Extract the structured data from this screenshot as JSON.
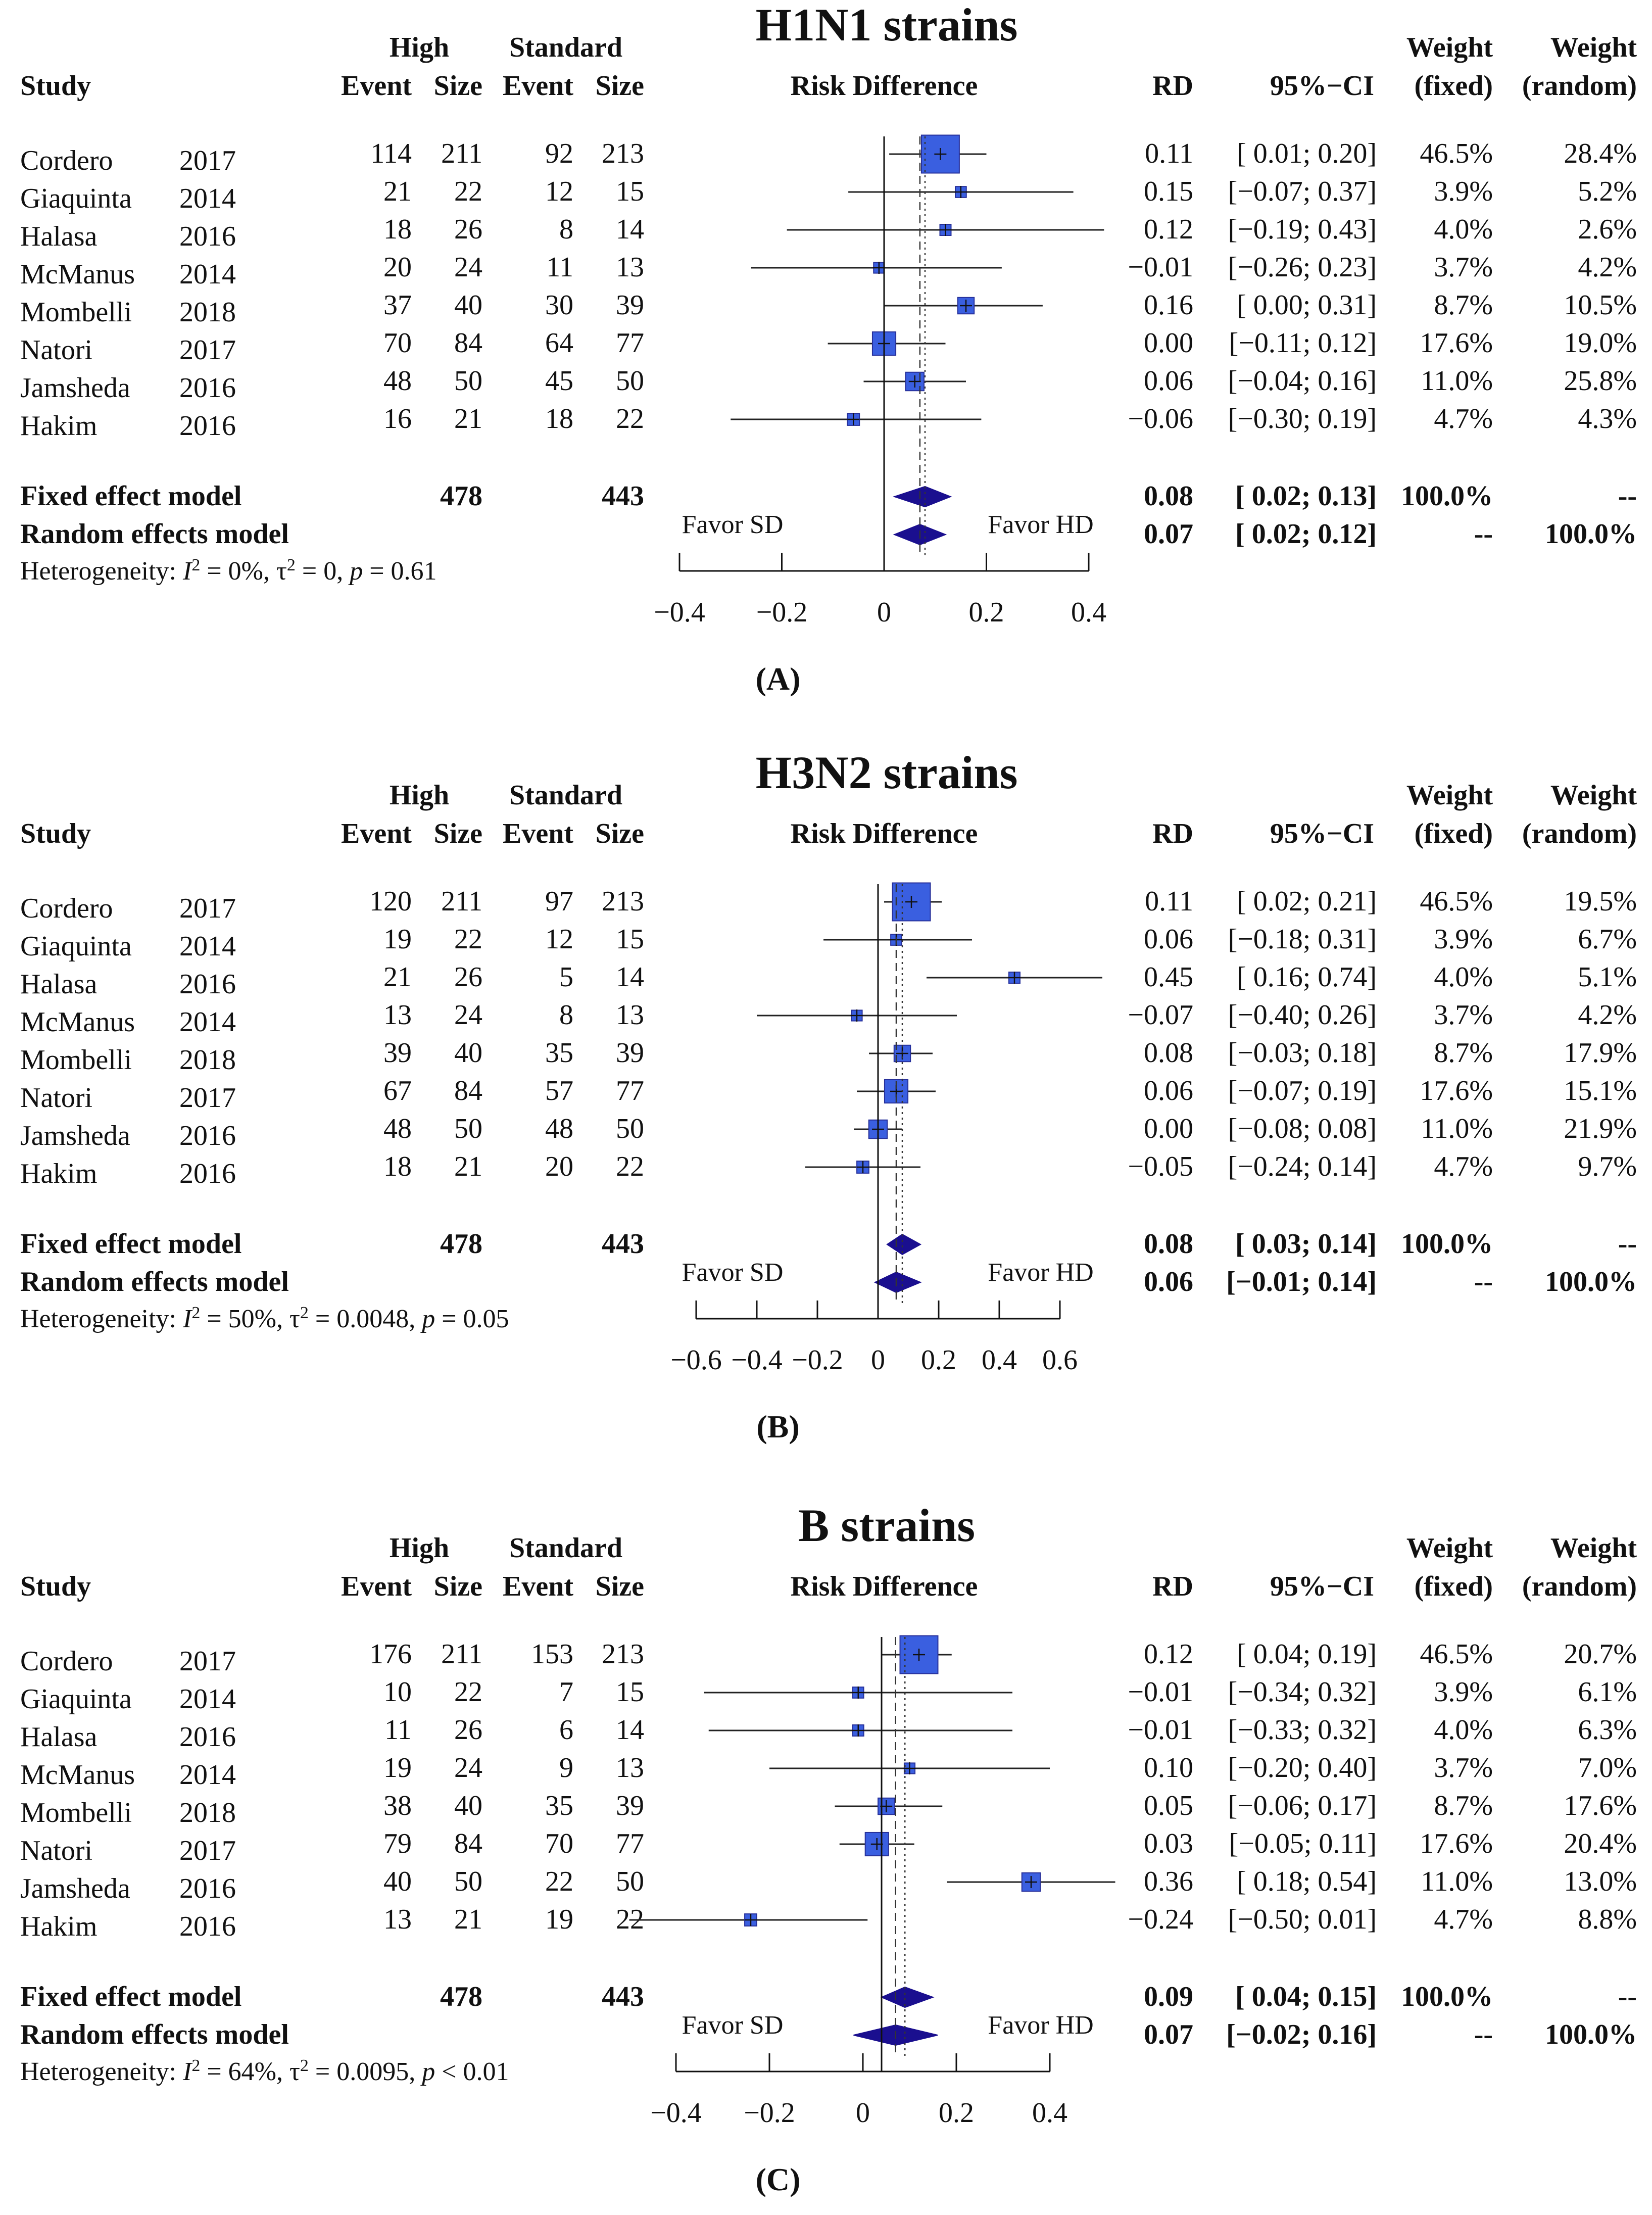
{
  "chart_data": [
    {
      "type": "forest",
      "title": "H1N1 strains",
      "panel_label": "(A)",
      "columns": {
        "study": "Study",
        "high": "High",
        "standard": "Standard",
        "event": "Event",
        "size": "Size",
        "plot": "Risk Difference",
        "rd": "RD",
        "ci": "95%−CI",
        "weight": "Weight",
        "fixed": "(fixed)",
        "random": "(random)"
      },
      "studies": [
        {
          "name": "Cordero",
          "year": "2017",
          "high_event": "114",
          "high_size": "211",
          "std_event": "92",
          "std_size": "213",
          "rd": 0.11,
          "lo": 0.01,
          "hi": 0.2,
          "rd_text": "0.11",
          "ci_text": "[ 0.01; 0.20]",
          "w_fixed": "46.5%",
          "w_random": "28.4%",
          "wf": 46.5
        },
        {
          "name": "Giaquinta",
          "year": "2014",
          "high_event": "21",
          "high_size": "22",
          "std_event": "12",
          "std_size": "15",
          "rd": 0.15,
          "lo": -0.07,
          "hi": 0.37,
          "rd_text": "0.15",
          "ci_text": "[−0.07; 0.37]",
          "w_fixed": "3.9%",
          "w_random": "5.2%",
          "wf": 3.9
        },
        {
          "name": "Halasa",
          "year": "2016",
          "high_event": "18",
          "high_size": "26",
          "std_event": "8",
          "std_size": "14",
          "rd": 0.12,
          "lo": -0.19,
          "hi": 0.43,
          "rd_text": "0.12",
          "ci_text": "[−0.19; 0.43]",
          "w_fixed": "4.0%",
          "w_random": "2.6%",
          "wf": 4.0
        },
        {
          "name": "McManus",
          "year": "2014",
          "high_event": "20",
          "high_size": "24",
          "std_event": "11",
          "std_size": "13",
          "rd": -0.01,
          "lo": -0.26,
          "hi": 0.23,
          "rd_text": "−0.01",
          "ci_text": "[−0.26; 0.23]",
          "w_fixed": "3.7%",
          "w_random": "4.2%",
          "wf": 3.7
        },
        {
          "name": "Mombelli",
          "year": "2018",
          "high_event": "37",
          "high_size": "40",
          "std_event": "30",
          "std_size": "39",
          "rd": 0.16,
          "lo": 0.0,
          "hi": 0.31,
          "rd_text": "0.16",
          "ci_text": "[ 0.00; 0.31]",
          "w_fixed": "8.7%",
          "w_random": "10.5%",
          "wf": 8.7
        },
        {
          "name": "Natori",
          "year": "2017",
          "high_event": "70",
          "high_size": "84",
          "std_event": "64",
          "std_size": "77",
          "rd": 0.0,
          "lo": -0.11,
          "hi": 0.12,
          "rd_text": "0.00",
          "ci_text": "[−0.11; 0.12]",
          "w_fixed": "17.6%",
          "w_random": "19.0%",
          "wf": 17.6
        },
        {
          "name": "Jamsheda",
          "year": "2016",
          "high_event": "48",
          "high_size": "50",
          "std_event": "45",
          "std_size": "50",
          "rd": 0.06,
          "lo": -0.04,
          "hi": 0.16,
          "rd_text": "0.06",
          "ci_text": "[−0.04; 0.16]",
          "w_fixed": "11.0%",
          "w_random": "25.8%",
          "wf": 11.0
        },
        {
          "name": "Hakim",
          "year": "2016",
          "high_event": "16",
          "high_size": "21",
          "std_event": "18",
          "std_size": "22",
          "rd": -0.06,
          "lo": -0.3,
          "hi": 0.19,
          "rd_text": "−0.06",
          "ci_text": "[−0.30; 0.19]",
          "w_fixed": "4.7%",
          "w_random": "4.3%",
          "wf": 4.7
        }
      ],
      "fixed": {
        "label": "Fixed effect model",
        "high_total": "478",
        "std_total": "443",
        "rd": 0.08,
        "lo": 0.02,
        "hi": 0.13,
        "rd_text": "0.08",
        "ci_text": "[ 0.02; 0.13]",
        "w_fixed": "100.0%",
        "w_random": "--"
      },
      "random": {
        "label": "Random effects model",
        "rd": 0.07,
        "lo": 0.02,
        "hi": 0.12,
        "rd_text": "0.07",
        "ci_text": "[ 0.02; 0.12]",
        "w_fixed": "--",
        "w_random": "100.0%"
      },
      "heterogeneity": {
        "label": "Heterogeneity:",
        "i2": "0%",
        "tau2": "0",
        "p": "= 0.61"
      },
      "favor_left": "Favor SD",
      "favor_right": "Favor HD",
      "axis": {
        "min": -0.4,
        "max": 0.4,
        "ticks": [
          -0.4,
          -0.2,
          0,
          0.2,
          0.4
        ],
        "tick_labels": [
          "−0.4",
          "−0.2",
          "0",
          "0.2",
          "0.4"
        ]
      }
    },
    {
      "type": "forest",
      "title": "H3N2 strains",
      "panel_label": "(B)",
      "columns": {
        "study": "Study",
        "high": "High",
        "standard": "Standard",
        "event": "Event",
        "size": "Size",
        "plot": "Risk Difference",
        "rd": "RD",
        "ci": "95%−CI",
        "weight": "Weight",
        "fixed": "(fixed)",
        "random": "(random)"
      },
      "studies": [
        {
          "name": "Cordero",
          "year": "2017",
          "high_event": "120",
          "high_size": "211",
          "std_event": "97",
          "std_size": "213",
          "rd": 0.11,
          "lo": 0.02,
          "hi": 0.21,
          "rd_text": "0.11",
          "ci_text": "[ 0.02; 0.21]",
          "w_fixed": "46.5%",
          "w_random": "19.5%",
          "wf": 46.5
        },
        {
          "name": "Giaquinta",
          "year": "2014",
          "high_event": "19",
          "high_size": "22",
          "std_event": "12",
          "std_size": "15",
          "rd": 0.06,
          "lo": -0.18,
          "hi": 0.31,
          "rd_text": "0.06",
          "ci_text": "[−0.18; 0.31]",
          "w_fixed": "3.9%",
          "w_random": "6.7%",
          "wf": 3.9
        },
        {
          "name": "Halasa",
          "year": "2016",
          "high_event": "21",
          "high_size": "26",
          "std_event": "5",
          "std_size": "14",
          "rd": 0.45,
          "lo": 0.16,
          "hi": 0.74,
          "rd_text": "0.45",
          "ci_text": "[ 0.16; 0.74]",
          "w_fixed": "4.0%",
          "w_random": "5.1%",
          "wf": 4.0
        },
        {
          "name": "McManus",
          "year": "2014",
          "high_event": "13",
          "high_size": "24",
          "std_event": "8",
          "std_size": "13",
          "rd": -0.07,
          "lo": -0.4,
          "hi": 0.26,
          "rd_text": "−0.07",
          "ci_text": "[−0.40; 0.26]",
          "w_fixed": "3.7%",
          "w_random": "4.2%",
          "wf": 3.7
        },
        {
          "name": "Mombelli",
          "year": "2018",
          "high_event": "39",
          "high_size": "40",
          "std_event": "35",
          "std_size": "39",
          "rd": 0.08,
          "lo": -0.03,
          "hi": 0.18,
          "rd_text": "0.08",
          "ci_text": "[−0.03; 0.18]",
          "w_fixed": "8.7%",
          "w_random": "17.9%",
          "wf": 8.7
        },
        {
          "name": "Natori",
          "year": "2017",
          "high_event": "67",
          "high_size": "84",
          "std_event": "57",
          "std_size": "77",
          "rd": 0.06,
          "lo": -0.07,
          "hi": 0.19,
          "rd_text": "0.06",
          "ci_text": "[−0.07; 0.19]",
          "w_fixed": "17.6%",
          "w_random": "15.1%",
          "wf": 17.6
        },
        {
          "name": "Jamsheda",
          "year": "2016",
          "high_event": "48",
          "high_size": "50",
          "std_event": "48",
          "std_size": "50",
          "rd": 0.0,
          "lo": -0.08,
          "hi": 0.08,
          "rd_text": "0.00",
          "ci_text": "[−0.08; 0.08]",
          "w_fixed": "11.0%",
          "w_random": "21.9%",
          "wf": 11.0
        },
        {
          "name": "Hakim",
          "year": "2016",
          "high_event": "18",
          "high_size": "21",
          "std_event": "20",
          "std_size": "22",
          "rd": -0.05,
          "lo": -0.24,
          "hi": 0.14,
          "rd_text": "−0.05",
          "ci_text": "[−0.24; 0.14]",
          "w_fixed": "4.7%",
          "w_random": "9.7%",
          "wf": 4.7
        }
      ],
      "fixed": {
        "label": "Fixed effect model",
        "high_total": "478",
        "std_total": "443",
        "rd": 0.08,
        "lo": 0.03,
        "hi": 0.14,
        "rd_text": "0.08",
        "ci_text": "[ 0.03; 0.14]",
        "w_fixed": "100.0%",
        "w_random": "--"
      },
      "random": {
        "label": "Random effects model",
        "rd": 0.06,
        "lo": -0.01,
        "hi": 0.14,
        "rd_text": "0.06",
        "ci_text": "[−0.01; 0.14]",
        "w_fixed": "--",
        "w_random": "100.0%"
      },
      "heterogeneity": {
        "label": "Heterogeneity:",
        "i2": "50%",
        "tau2": "0.0048",
        "p": "= 0.05"
      },
      "favor_left": "Favor SD",
      "favor_right": "Favor HD",
      "axis": {
        "min": -0.6,
        "max": 0.6,
        "ticks": [
          -0.6,
          -0.4,
          -0.2,
          0,
          0.2,
          0.4,
          0.6
        ],
        "tick_labels": [
          "−0.6",
          "−0.4",
          "−0.2",
          "0",
          "0.2",
          "0.4",
          "0.6"
        ]
      }
    },
    {
      "type": "forest",
      "title": "B strains",
      "panel_label": "(C)",
      "columns": {
        "study": "Study",
        "high": "High",
        "standard": "Standard",
        "event": "Event",
        "size": "Size",
        "plot": "Risk Difference",
        "rd": "RD",
        "ci": "95%−CI",
        "weight": "Weight",
        "fixed": "(fixed)",
        "random": "(random)"
      },
      "studies": [
        {
          "name": "Cordero",
          "year": "2017",
          "high_event": "176",
          "high_size": "211",
          "std_event": "153",
          "std_size": "213",
          "rd": 0.12,
          "lo": 0.04,
          "hi": 0.19,
          "rd_text": "0.12",
          "ci_text": "[ 0.04; 0.19]",
          "w_fixed": "46.5%",
          "w_random": "20.7%",
          "wf": 46.5
        },
        {
          "name": "Giaquinta",
          "year": "2014",
          "high_event": "10",
          "high_size": "22",
          "std_event": "7",
          "std_size": "15",
          "rd": -0.01,
          "lo": -0.34,
          "hi": 0.32,
          "rd_text": "−0.01",
          "ci_text": "[−0.34; 0.32]",
          "w_fixed": "3.9%",
          "w_random": "6.1%",
          "wf": 3.9
        },
        {
          "name": "Halasa",
          "year": "2016",
          "high_event": "11",
          "high_size": "26",
          "std_event": "6",
          "std_size": "14",
          "rd": -0.01,
          "lo": -0.33,
          "hi": 0.32,
          "rd_text": "−0.01",
          "ci_text": "[−0.33; 0.32]",
          "w_fixed": "4.0%",
          "w_random": "6.3%",
          "wf": 4.0
        },
        {
          "name": "McManus",
          "year": "2014",
          "high_event": "19",
          "high_size": "24",
          "std_event": "9",
          "std_size": "13",
          "rd": 0.1,
          "lo": -0.2,
          "hi": 0.4,
          "rd_text": "0.10",
          "ci_text": "[−0.20; 0.40]",
          "w_fixed": "3.7%",
          "w_random": "7.0%",
          "wf": 3.7
        },
        {
          "name": "Mombelli",
          "year": "2018",
          "high_event": "38",
          "high_size": "40",
          "std_event": "35",
          "std_size": "39",
          "rd": 0.05,
          "lo": -0.06,
          "hi": 0.17,
          "rd_text": "0.05",
          "ci_text": "[−0.06; 0.17]",
          "w_fixed": "8.7%",
          "w_random": "17.6%",
          "wf": 8.7
        },
        {
          "name": "Natori",
          "year": "2017",
          "high_event": "79",
          "high_size": "84",
          "std_event": "70",
          "std_size": "77",
          "rd": 0.03,
          "lo": -0.05,
          "hi": 0.11,
          "rd_text": "0.03",
          "ci_text": "[−0.05; 0.11]",
          "w_fixed": "17.6%",
          "w_random": "20.4%",
          "wf": 17.6
        },
        {
          "name": "Jamsheda",
          "year": "2016",
          "high_event": "40",
          "high_size": "50",
          "std_event": "22",
          "std_size": "50",
          "rd": 0.36,
          "lo": 0.18,
          "hi": 0.54,
          "rd_text": "0.36",
          "ci_text": "[ 0.18; 0.54]",
          "w_fixed": "11.0%",
          "w_random": "13.0%",
          "wf": 11.0
        },
        {
          "name": "Hakim",
          "year": "2016",
          "high_event": "13",
          "high_size": "21",
          "std_event": "19",
          "std_size": "22",
          "rd": -0.24,
          "lo": -0.5,
          "hi": 0.01,
          "rd_text": "−0.24",
          "ci_text": "[−0.50; 0.01]",
          "w_fixed": "4.7%",
          "w_random": "8.8%",
          "wf": 4.7
        }
      ],
      "fixed": {
        "label": "Fixed effect model",
        "high_total": "478",
        "std_total": "443",
        "rd": 0.09,
        "lo": 0.04,
        "hi": 0.15,
        "rd_text": "0.09",
        "ci_text": "[ 0.04; 0.15]",
        "w_fixed": "100.0%",
        "w_random": "--"
      },
      "random": {
        "label": "Random effects model",
        "rd": 0.07,
        "lo": -0.02,
        "hi": 0.16,
        "rd_text": "0.07",
        "ci_text": "[−0.02; 0.16]",
        "w_fixed": "--",
        "w_random": "100.0%"
      },
      "heterogeneity": {
        "label": "Heterogeneity:",
        "i2": "64%",
        "tau2": "0.0095",
        "p": "< 0.01"
      },
      "favor_left": "Favor SD",
      "favor_right": "Favor HD",
      "axis": {
        "min": -0.4,
        "max": 0.4,
        "ticks": [
          -0.4,
          -0.2,
          0,
          0.2,
          0.4
        ],
        "tick_labels": [
          "−0.4",
          "−0.2",
          "0",
          "0.2",
          "0.4"
        ]
      }
    }
  ],
  "colors": {
    "square": "#3a5fe0",
    "square_edge": "#27309a",
    "diamond": "#1a0f8f",
    "text": "#111111"
  }
}
